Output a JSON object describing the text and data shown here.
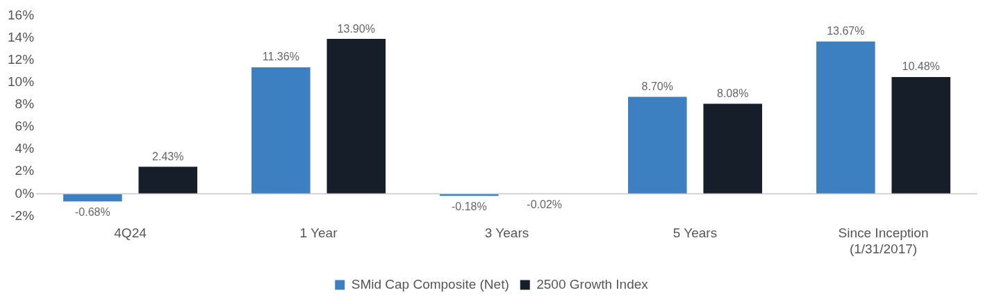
{
  "chart_data": {
    "type": "bar",
    "categories": [
      "4Q24",
      "1 Year",
      "3 Years",
      "5 Years",
      "Since Inception\n(1/31/2017)"
    ],
    "series": [
      {
        "name": "SMid Cap Composite (Net)",
        "color": "#3d80c2",
        "values": [
          -0.68,
          11.36,
          -0.18,
          8.7,
          13.67
        ],
        "value_labels": [
          "-0.68%",
          "11.36%",
          "-0.18%",
          "8.70%",
          "13.67%"
        ]
      },
      {
        "name": "2500 Growth Index",
        "color": "#161f29",
        "values": [
          2.43,
          13.9,
          -0.02,
          8.08,
          10.48
        ],
        "value_labels": [
          "2.43%",
          "13.90%",
          "-0.02%",
          "8.08%",
          "10.48%"
        ]
      }
    ],
    "ylim": [
      -2,
      16
    ],
    "yticks": [
      {
        "value": -2,
        "label": "-2%"
      },
      {
        "value": 0,
        "label": "0%"
      },
      {
        "value": 2,
        "label": "2%"
      },
      {
        "value": 4,
        "label": "4%"
      },
      {
        "value": 6,
        "label": "6%"
      },
      {
        "value": 8,
        "label": "8%"
      },
      {
        "value": 10,
        "label": "10%"
      },
      {
        "value": 12,
        "label": "12%"
      },
      {
        "value": 14,
        "label": "14%"
      },
      {
        "value": 16,
        "label": "16%"
      }
    ],
    "grid": false,
    "legend": "bottom"
  }
}
